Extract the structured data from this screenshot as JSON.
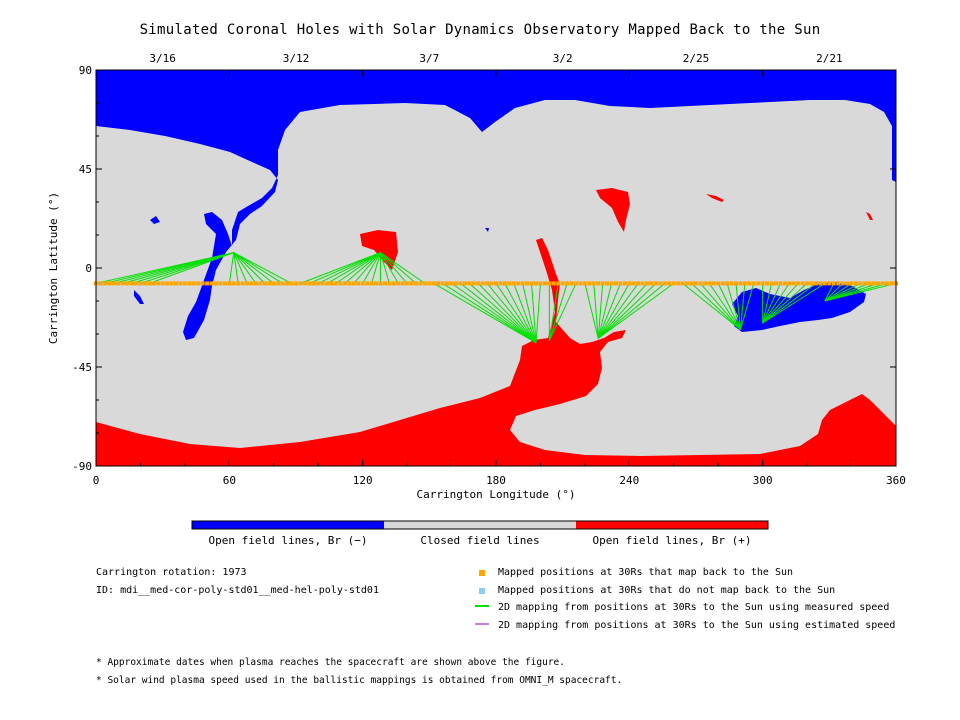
{
  "title": "Simulated Coronal Holes with Solar Dynamics Observatory Mapped Back to the Sun",
  "colors": {
    "open_negative": "#0000ff",
    "closed": "#d9d9d9",
    "open_positive": "#ff0000",
    "mapped_back": "#ffa500",
    "not_mapped": "#87cefa",
    "measured_speed": "#00e000",
    "estimated_speed": "#c080f0"
  },
  "chart_data": {
    "type": "map",
    "xlabel": "Carrington Longitude (°)",
    "ylabel": "Carrington Latitude (°)",
    "xlim": [
      0,
      360
    ],
    "ylim": [
      -90,
      90
    ],
    "x_ticks": [
      "0",
      "60",
      "120",
      "180",
      "240",
      "300",
      "360"
    ],
    "y_ticks": [
      "90",
      "45",
      "0",
      "-45",
      "-90"
    ],
    "date_ticks": [
      {
        "label": "3/16",
        "lon": 30
      },
      {
        "label": "3/12",
        "lon": 90
      },
      {
        "label": "3/7",
        "lon": 150
      },
      {
        "label": "3/2",
        "lon": 210
      },
      {
        "label": "2/25",
        "lon": 270
      },
      {
        "label": "2/21",
        "lon": 330
      }
    ],
    "spacecraft_latitude": -7,
    "mapped_longitudes": [
      0,
      2,
      4,
      6,
      8,
      10,
      12,
      14,
      16,
      18,
      20,
      22,
      24,
      26,
      28,
      30,
      32,
      34,
      36,
      38,
      40,
      42,
      44,
      46,
      48,
      50,
      52,
      54,
      56,
      58,
      60,
      62,
      64,
      66,
      68,
      70,
      72,
      74,
      76,
      78,
      80,
      82,
      84,
      86,
      88,
      90,
      92,
      94,
      96,
      98,
      100,
      102,
      104,
      106,
      108,
      110,
      112,
      114,
      116,
      118,
      120,
      122,
      124,
      126,
      128,
      130,
      132,
      134,
      136,
      138,
      140,
      142,
      144,
      146,
      148,
      150,
      152,
      154,
      156,
      158,
      160,
      162,
      164,
      166,
      168,
      170,
      172,
      174,
      176,
      178,
      180,
      182,
      184,
      186,
      188,
      190,
      192,
      194,
      196,
      198,
      200,
      202,
      204,
      206,
      208,
      210,
      212,
      214,
      216,
      218,
      220,
      222,
      224,
      226,
      228,
      230,
      232,
      234,
      236,
      238,
      240,
      242,
      244,
      246,
      248,
      250,
      252,
      254,
      256,
      258,
      260,
      262,
      264,
      266,
      268,
      270,
      272,
      274,
      276,
      278,
      280,
      282,
      284,
      286,
      288,
      290,
      292,
      294,
      296,
      298,
      300,
      302,
      304,
      306,
      308,
      310,
      312,
      314,
      316,
      318,
      320,
      322,
      324,
      326,
      328,
      330,
      332,
      334,
      336,
      338,
      340,
      342,
      344,
      346,
      348,
      350,
      352,
      354,
      356,
      358,
      360
    ],
    "mapping_targets": [
      {
        "from": 0,
        "to": 24,
        "lon": 62,
        "lat": 7
      },
      {
        "from": 60,
        "to": 90,
        "lon": 62,
        "lat": 7
      },
      {
        "from": 84,
        "to": 148,
        "lon": 128,
        "lat": 7
      },
      {
        "from": 150,
        "to": 200,
        "lon": 198,
        "lat": -34
      },
      {
        "from": 202,
        "to": 216,
        "lon": 204,
        "lat": -33
      },
      {
        "from": 218,
        "to": 262,
        "lon": 226,
        "lat": -32
      },
      {
        "from": 264,
        "to": 298,
        "lon": 290,
        "lat": -28
      },
      {
        "from": 300,
        "to": 328,
        "lon": 300,
        "lat": -25
      },
      {
        "from": 330,
        "to": 360,
        "lon": 328,
        "lat": -15
      }
    ],
    "regions": {
      "north_polar_hole": "open_negative",
      "south_polar_hole": "open_positive",
      "background": "closed"
    }
  },
  "colorbar": {
    "labels": [
      "Open field lines, Br (−)",
      "Closed field lines",
      "Open field lines, Br (+)"
    ]
  },
  "info": {
    "rotation": "Carrington rotation: 1973",
    "id": "ID: mdi__med-cor-poly-std01__med-hel-poly-std01"
  },
  "legend": [
    {
      "label": "Mapped positions at 30Rs that map back to the Sun",
      "kind": "square",
      "color": "#ffa500"
    },
    {
      "label": "Mapped positions at 30Rs that do not map back to the Sun",
      "kind": "square",
      "color": "#87cefa"
    },
    {
      "label": "2D mapping from positions at 30Rs to the Sun using measured speed",
      "kind": "line",
      "color": "#00e000"
    },
    {
      "label": "2D mapping from positions at 30Rs to the Sun using estimated speed",
      "kind": "line",
      "color": "#c080f0"
    }
  ],
  "notes": [
    "* Approximate dates when plasma reaches the spacecraft are shown above the figure.",
    "* Solar wind plasma speed used in the ballistic mappings is obtained from OMNI_M spacecraft."
  ]
}
